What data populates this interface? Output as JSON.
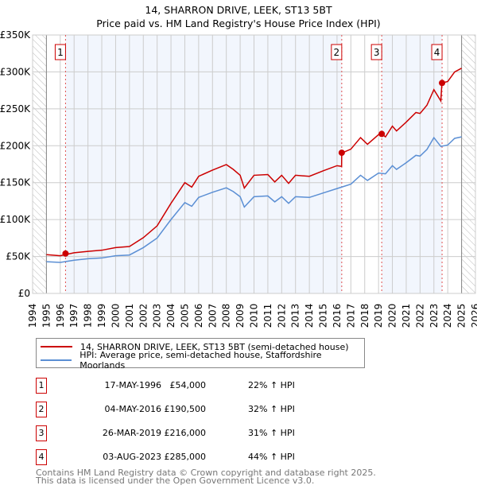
{
  "chart_data": {
    "type": "line",
    "title": "14, SHARRON DRIVE, LEEK, ST13 5BT",
    "subtitle": "Price paid vs. HM Land Registry's House Price Index (HPI)",
    "xlim": [
      1994,
      2026
    ],
    "ylim": [
      0,
      350000
    ],
    "x_ticks": [
      "1994",
      "1995",
      "1996",
      "1997",
      "1998",
      "1999",
      "2000",
      "2001",
      "2002",
      "2003",
      "2004",
      "2005",
      "2006",
      "2007",
      "2008",
      "2009",
      "2010",
      "2011",
      "2012",
      "2013",
      "2014",
      "2015",
      "2016",
      "2017",
      "2018",
      "2019",
      "2020",
      "2021",
      "2022",
      "2023",
      "2024",
      "2025",
      "2026"
    ],
    "y_ticks": [
      {
        "v": 0,
        "label": "£0"
      },
      {
        "v": 50000,
        "label": "£50K"
      },
      {
        "v": 100000,
        "label": "£100K"
      },
      {
        "v": 150000,
        "label": "£150K"
      },
      {
        "v": 200000,
        "label": "£200K"
      },
      {
        "v": 250000,
        "label": "£250K"
      },
      {
        "v": 300000,
        "label": "£300K"
      },
      {
        "v": 350000,
        "label": "£350K"
      }
    ],
    "grid": true,
    "data_range": [
      1995,
      2025
    ],
    "series": [
      {
        "name": "14, SHARRON DRIVE, LEEK, ST13 5BT (semi-detached house)",
        "color": "#cc0000",
        "x": [
          1995,
          1996,
          1997,
          1998,
          1999,
          2000,
          2001,
          2002,
          2003,
          2004,
          2005,
          2005.5,
          2006,
          2007,
          2008,
          2008.5,
          2009,
          2009.3,
          2010,
          2011,
          2011.5,
          2012,
          2012.5,
          2013,
          2014,
          2015,
          2016,
          2016.33,
          2016.34,
          2016.5,
          2017,
          2017.7,
          2018.2,
          2019,
          2019.23,
          2019.5,
          2020,
          2020.3,
          2021,
          2021.7,
          2022,
          2022.5,
          2023,
          2023.5,
          2023.58,
          2024,
          2024.5,
          2025
        ],
        "y": [
          52500,
          51000,
          55000,
          57000,
          58500,
          62000,
          63500,
          75500,
          91500,
          122000,
          150000,
          144000,
          158600,
          167000,
          174500,
          168000,
          160000,
          142700,
          160000,
          161000,
          151000,
          160000,
          149000,
          160000,
          158600,
          166000,
          173000,
          172000,
          190500,
          191400,
          195400,
          211000,
          202000,
          215000,
          216000,
          212000,
          226600,
          220000,
          232000,
          245000,
          243700,
          255000,
          276000,
          260700,
          285000,
          287000,
          300000,
          305000
        ]
      },
      {
        "name": "HPI: Average price, semi-detached house, Staffordshire Moorlands",
        "color": "#5b8fd4",
        "x": [
          1995,
          1996,
          1997,
          1998,
          1999,
          2000,
          2001,
          2002,
          2003,
          2004,
          2005,
          2005.5,
          2006,
          2007,
          2008,
          2008.5,
          2009,
          2009.3,
          2010,
          2011,
          2011.5,
          2012,
          2012.5,
          2013,
          2014,
          2015,
          2016,
          2016.5,
          2017,
          2017.7,
          2018.2,
          2019,
          2019.5,
          2020,
          2020.3,
          2021,
          2021.7,
          2022,
          2022.5,
          2023,
          2023.5,
          2024,
          2024.5,
          2025
        ],
        "y": [
          43000,
          42000,
          45000,
          47000,
          48000,
          51000,
          52000,
          62000,
          75000,
          100000,
          123000,
          118000,
          130000,
          137000,
          143000,
          138000,
          131000,
          117000,
          131000,
          132000,
          124000,
          131000,
          122000,
          131000,
          130000,
          136000,
          142000,
          145000,
          148000,
          160000,
          153000,
          163000,
          162000,
          173000,
          168000,
          177000,
          187000,
          186000,
          195000,
          211000,
          199000,
          201000,
          210000,
          212000
        ]
      }
    ],
    "sales": [
      {
        "n": "1",
        "x": 1996.38,
        "date": "17-MAY-1996",
        "price": 54000,
        "price_label": "£54,000",
        "hpi_label": "22% ↑ HPI"
      },
      {
        "n": "2",
        "x": 2016.34,
        "date": "04-MAY-2016",
        "price": 190500,
        "price_label": "£190,500",
        "hpi_label": "32% ↑ HPI"
      },
      {
        "n": "3",
        "x": 2019.23,
        "date": "26-MAR-2019",
        "price": 216000,
        "price_label": "£216,000",
        "hpi_label": "31% ↑ HPI"
      },
      {
        "n": "4",
        "x": 2023.59,
        "date": "03-AUG-2023",
        "price": 285000,
        "price_label": "£285,000",
        "hpi_label": "44% ↑ HPI"
      }
    ],
    "legend_position": "below"
  },
  "legend": {
    "red": "14, SHARRON DRIVE, LEEK, ST13 5BT (semi-detached house)",
    "blue": "HPI: Average price, semi-detached house, Staffordshire Moorlands"
  },
  "footer": {
    "line1": "Contains HM Land Registry data © Crown copyright and database right 2025.",
    "line2": "This data is licensed under the Open Government Licence v3.0."
  }
}
